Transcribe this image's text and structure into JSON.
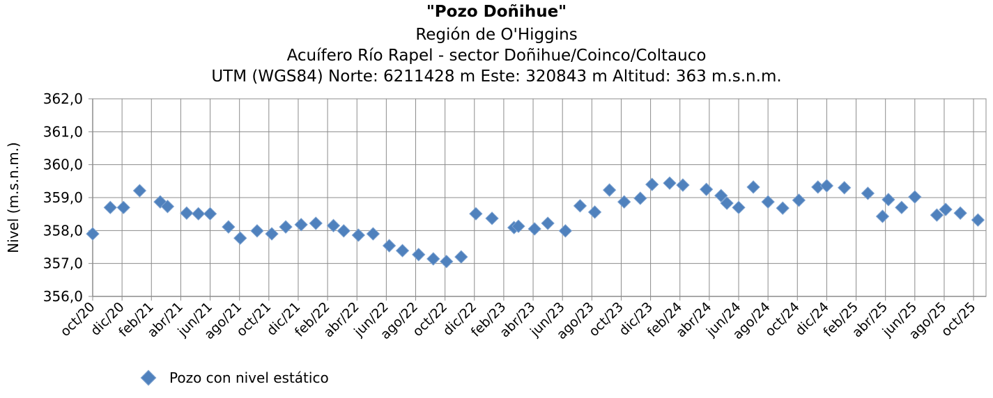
{
  "chart_data": {
    "type": "scatter",
    "title": "\"Pozo Doñihue\"",
    "subtitles": [
      "Región de O'Higgins",
      "Acuífero Río Rapel - sector Doñihue/Coinco/Coltauco",
      "UTM (WGS84) Norte: 6211428 m  Este: 320843 m   Altitud: 363 m.s.n.m."
    ],
    "xlabel": "",
    "ylabel": "Nivel (m.s.n.m.)",
    "x_unit": "months since oct/20",
    "xlim": [
      0,
      60.85
    ],
    "ylim": [
      356,
      362
    ],
    "yticks": [
      "356,0",
      "357,0",
      "358,0",
      "359,0",
      "360,0",
      "361,0",
      "362,0"
    ],
    "xtick_labels": [
      "oct/20",
      "dic/20",
      "feb/21",
      "abr/21",
      "jun/21",
      "ago/21",
      "oct/21",
      "dic/21",
      "feb/22",
      "abr/22",
      "jun/22",
      "ago/22",
      "oct/22",
      "dic/22",
      "feb/23",
      "abr/23",
      "jun/23",
      "ago/23",
      "oct/23",
      "dic/23",
      "feb/24",
      "abr/24",
      "jun/24",
      "ago/24",
      "oct/24",
      "dic/24",
      "feb/25",
      "abr/25",
      "jun/25",
      "ago/25",
      "oct/25"
    ],
    "grid": true,
    "legend_position": "bottom-left",
    "series": [
      {
        "name": "Pozo con nivel estático",
        "color": "#4f81bd",
        "x": [
          0,
          1.2,
          2.1,
          3.2,
          4.6,
          5.1,
          6.4,
          7.2,
          8.0,
          9.25,
          10.05,
          11.2,
          12.2,
          13.15,
          14.2,
          15.2,
          16.4,
          17.1,
          18.1,
          19.1,
          20.2,
          21.1,
          22.2,
          23.2,
          24.1,
          25.1,
          26.1,
          27.2,
          28.7,
          29.0,
          30.1,
          31.0,
          32.2,
          33.2,
          34.2,
          35.2,
          36.2,
          37.3,
          38.1,
          39.3,
          40.2,
          41.8,
          42.8,
          43.2,
          44.0,
          45.0,
          46.0,
          47.0,
          48.1,
          49.4,
          50.0,
          51.2,
          52.8,
          53.8,
          54.2,
          55.1,
          56.0,
          57.5,
          58.1,
          59.1,
          60.3
        ],
        "y": [
          357.9,
          358.7,
          358.7,
          359.21,
          358.87,
          358.73,
          358.53,
          358.51,
          358.51,
          358.11,
          357.77,
          357.99,
          357.9,
          358.11,
          358.18,
          358.22,
          358.15,
          357.99,
          357.86,
          357.9,
          357.54,
          357.39,
          357.27,
          357.14,
          357.06,
          357.2,
          358.51,
          358.37,
          358.09,
          358.13,
          358.05,
          358.22,
          357.99,
          358.75,
          358.56,
          359.23,
          358.87,
          358.98,
          359.4,
          359.44,
          359.38,
          359.25,
          359.06,
          358.83,
          358.7,
          359.32,
          358.87,
          358.68,
          358.92,
          359.32,
          359.36,
          359.3,
          359.13,
          358.43,
          358.94,
          358.7,
          359.02,
          358.47,
          358.64,
          358.53,
          358.32
        ]
      }
    ]
  }
}
